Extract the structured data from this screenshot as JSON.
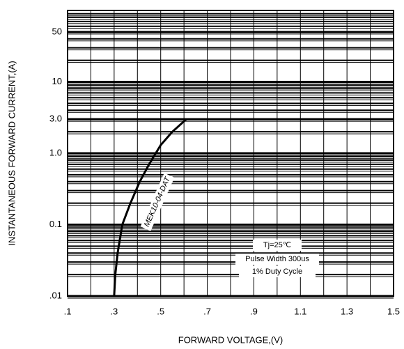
{
  "chart_data": {
    "type": "line",
    "x_label": "FORWARD VOLTAGE,(V)",
    "y_label": "INSTANTANEOUS FORWARD CURRENT,(A)",
    "xlim": [
      0.1,
      1.5
    ],
    "xticks": [
      {
        "value": 0.1,
        "label": ".1"
      },
      {
        "value": 0.3,
        "label": ".3"
      },
      {
        "value": 0.5,
        "label": ".5"
      },
      {
        "value": 0.7,
        "label": ".7"
      },
      {
        "value": 0.9,
        "label": ".9"
      },
      1.1,
      1.3,
      1.5
    ],
    "ylim": [
      0.01,
      100
    ],
    "yticks": [
      {
        "value": 0.01,
        "label": ".01"
      },
      0.1,
      {
        "value": 1,
        "label": "1.0"
      },
      {
        "value": 3,
        "label": "3.0"
      },
      10,
      50
    ],
    "y_log": true,
    "grid": true,
    "minor_grid": true,
    "series": [
      {
        "name": "MEK10-04-DAT",
        "color": "#000000",
        "x": [
          0.3,
          0.305,
          0.315,
          0.335,
          0.37,
          0.41,
          0.45,
          0.5,
          0.55,
          0.61
        ],
        "values": [
          0.01,
          0.02,
          0.04,
          0.1,
          0.2,
          0.4,
          0.7,
          1.3,
          2.0,
          3.0
        ]
      }
    ],
    "annotations": [
      "Tj=25℃",
      "Pulse Width 300us",
      "1% Duty Cycle"
    ]
  }
}
